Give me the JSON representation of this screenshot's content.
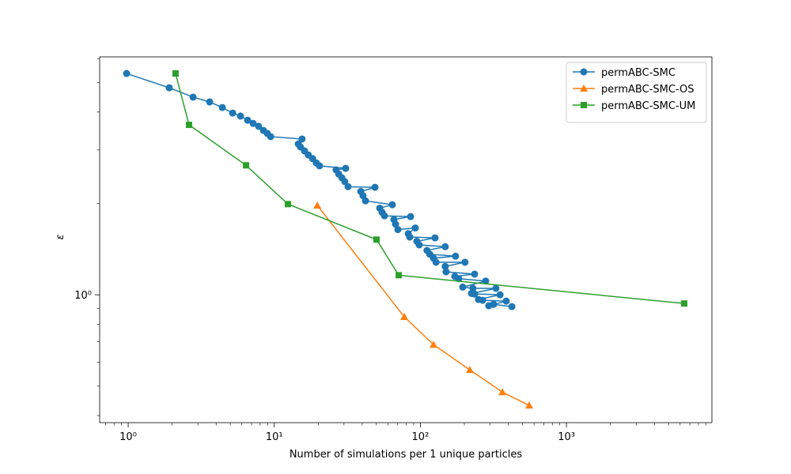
{
  "chart_data": {
    "type": "line",
    "xlabel": "Number of simulations per 1 unique particles",
    "ylabel": "ε",
    "xscale": "log",
    "yscale": "log",
    "xlim": [
      0.638,
      9900
    ],
    "ylim": [
      0.379,
      6.08
    ],
    "xticks": [
      {
        "value": 1,
        "label": "10⁰"
      },
      {
        "value": 10,
        "label": "10¹"
      },
      {
        "value": 100,
        "label": "10²"
      },
      {
        "value": 1000,
        "label": "10³"
      }
    ],
    "xminorticks": [
      0.7,
      0.8,
      0.9,
      2,
      3,
      4,
      5,
      6,
      7,
      8,
      9,
      20,
      30,
      40,
      50,
      60,
      70,
      80,
      90,
      200,
      300,
      400,
      500,
      600,
      700,
      800,
      900,
      2000,
      3000,
      4000,
      5000,
      6000,
      7000,
      8000,
      9000
    ],
    "yticks": [
      {
        "value": 1,
        "label": "10⁰"
      }
    ],
    "yminorticks": [
      0.4,
      0.5,
      0.6,
      0.7,
      0.8,
      0.9,
      2,
      3,
      4,
      5,
      6
    ],
    "legend": "upper right",
    "series": [
      {
        "name": "permABC-SMC",
        "color": "#1f77b4",
        "marker": "circle",
        "x": [
          0.975,
          1.91,
          2.78,
          3.61,
          4.41,
          5.19,
          5.87,
          6.57,
          7.17,
          7.82,
          8.43,
          8.97,
          9.44,
          15.5,
          14.6,
          15.1,
          16.1,
          17.1,
          18.3,
          19.4,
          20.4,
          30.8,
          26.5,
          27.6,
          29.0,
          30.4,
          32.0,
          48.9,
          39.1,
          40.5,
          42.1,
          64.3,
          52.7,
          54.7,
          56.8,
          85.7,
          65.9,
          67.6,
          70.2,
          92.3,
          82.6,
          84.6,
          126,
          94.6,
          98.2,
          148,
          111,
          116,
          174,
          123,
          128,
          202,
          148,
          150,
          235,
          172,
          183,
          280,
          195,
          229,
          329,
          224,
          235,
          351,
          250,
          267,
          387,
          294,
          317,
          423
        ],
        "values": [
          5.36,
          4.81,
          4.48,
          4.32,
          4.14,
          3.97,
          3.88,
          3.76,
          3.67,
          3.59,
          3.48,
          3.4,
          3.32,
          3.26,
          3.14,
          3.07,
          2.98,
          2.89,
          2.81,
          2.72,
          2.66,
          2.61,
          2.58,
          2.5,
          2.43,
          2.36,
          2.27,
          2.26,
          2.19,
          2.12,
          2.04,
          1.98,
          1.93,
          1.87,
          1.82,
          1.81,
          1.77,
          1.71,
          1.64,
          1.66,
          1.59,
          1.55,
          1.54,
          1.5,
          1.46,
          1.44,
          1.4,
          1.36,
          1.34,
          1.32,
          1.28,
          1.28,
          1.24,
          1.19,
          1.17,
          1.15,
          1.13,
          1.11,
          1.06,
          1.05,
          1.05,
          1.01,
          1.006,
          1.0,
          0.965,
          0.959,
          0.953,
          0.92,
          0.93,
          0.914
        ]
      },
      {
        "name": "permABC-SMC-OS",
        "color": "#ff7f0e",
        "marker": "triangle",
        "x": [
          19.7,
          77.6,
          123,
          218,
          364,
          556
        ],
        "values": [
          1.97,
          0.846,
          0.685,
          0.566,
          0.478,
          0.432
        ]
      },
      {
        "name": "permABC-SMC-UM",
        "color": "#2ca02c",
        "marker": "square",
        "x": [
          2.11,
          2.61,
          6.41,
          12.4,
          50.1,
          71.1,
          6400
        ],
        "values": [
          5.36,
          3.63,
          2.67,
          1.99,
          1.52,
          1.16,
          0.936
        ]
      }
    ]
  }
}
